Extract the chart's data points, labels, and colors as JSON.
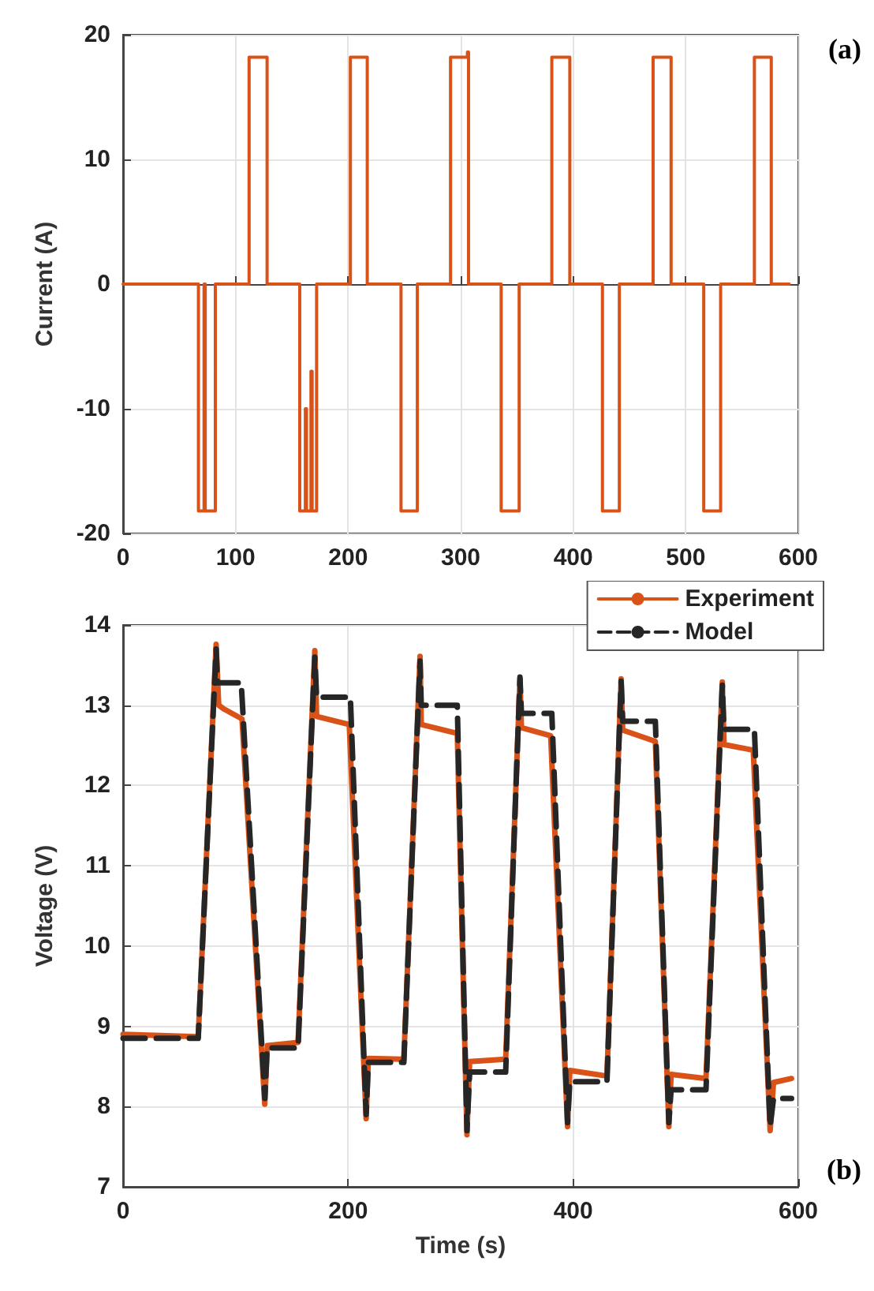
{
  "chart_data": [
    {
      "type": "step",
      "ylabel": "Current (A)",
      "annotations": [
        "(a)"
      ],
      "xlim": [
        0,
        600
      ],
      "xticks": [
        0,
        100,
        200,
        300,
        400,
        500,
        600
      ],
      "ylim": [
        -20,
        20
      ],
      "yticks": [
        -20,
        -10,
        0,
        10,
        20
      ],
      "grid": true,
      "marker": "none",
      "line_style": "solid",
      "color": "#d95319",
      "x": [
        0,
        67,
        67,
        72,
        72,
        73,
        73,
        82,
        82,
        112,
        112,
        128,
        128,
        157,
        157,
        162,
        162,
        163,
        163,
        167,
        167,
        168,
        168,
        172,
        172,
        202,
        202,
        217,
        217,
        247,
        247,
        261.5,
        261.5,
        291,
        291,
        306,
        306,
        307,
        307,
        336,
        336,
        352,
        352,
        381,
        381,
        397,
        397,
        426,
        426,
        441,
        441,
        471,
        471,
        487,
        487,
        516,
        516,
        531,
        531,
        561,
        561,
        576,
        576,
        592
      ],
      "values": [
        0,
        0,
        -18.2,
        -18.2,
        0,
        0,
        -18.2,
        -18.2,
        0,
        0,
        18.2,
        18.2,
        0,
        0,
        -18.2,
        -18.2,
        -10,
        -10,
        -18.2,
        -18.2,
        -7,
        -7,
        -18.2,
        -18.2,
        0,
        0,
        18.2,
        18.2,
        0,
        0,
        -18.2,
        -18.2,
        0,
        0,
        18.2,
        18.2,
        18.6,
        18.6,
        0,
        0,
        -18.2,
        -18.2,
        0,
        0,
        18.2,
        18.2,
        0,
        0,
        -18.2,
        -18.2,
        0,
        0,
        18.2,
        18.2,
        0,
        0,
        -18.2,
        -18.2,
        0,
        0,
        18.2,
        18.2,
        0,
        0
      ]
    },
    {
      "type": "line",
      "xlabel": "Time (s)",
      "ylabel": "Voltage (V)",
      "annotations": [
        "(b)"
      ],
      "xlim": [
        0,
        600
      ],
      "xticks": [
        0,
        200,
        400,
        600
      ],
      "ylim": [
        7,
        14
      ],
      "yticks": [
        7,
        8,
        9,
        10,
        11,
        12,
        13,
        14
      ],
      "grid": true,
      "legend": "top right",
      "marker": "none",
      "series": [
        {
          "name": "Experiment",
          "color": "#d95319",
          "line_style": "solid",
          "x": [
            0,
            66.8,
            82.7,
            85,
            90,
            105.7,
            125.9,
            128.2,
            155.5,
            170.4,
            172,
            201,
            216,
            218,
            249.5,
            263.9,
            265,
            297,
            305.6,
            308,
            340,
            352.7,
            354,
            380,
            395,
            397,
            430,
            442.6,
            444,
            473,
            485,
            487,
            518,
            532.5,
            534,
            560,
            575,
            578,
            594
          ],
          "values": [
            8.9,
            8.87,
            13.76,
            13.0,
            12.95,
            12.83,
            8.03,
            8.76,
            8.8,
            13.68,
            12.86,
            12.76,
            7.85,
            8.6,
            8.59,
            13.61,
            12.76,
            12.65,
            7.65,
            8.56,
            8.59,
            13.33,
            12.72,
            12.62,
            7.75,
            8.45,
            8.38,
            13.33,
            12.69,
            12.55,
            7.75,
            8.4,
            8.35,
            13.29,
            12.51,
            12.44,
            7.7,
            8.3,
            8.35
          ]
        },
        {
          "name": "Model",
          "color": "#262626",
          "line_style": "dashed",
          "x": [
            0,
            66.8,
            82.7,
            84,
            105,
            126,
            128,
            155.5,
            170.4,
            172,
            202,
            216,
            218,
            249.5,
            263.9,
            265,
            297,
            305.6,
            308,
            340,
            352.7,
            354,
            381,
            395,
            397,
            430,
            442.6,
            444,
            473,
            485,
            487,
            518,
            532.5,
            534,
            561,
            575,
            578,
            594
          ],
          "values": [
            8.85,
            8.85,
            13.7,
            13.28,
            13.28,
            8.1,
            8.73,
            8.73,
            13.6,
            13.1,
            13.1,
            7.9,
            8.55,
            8.55,
            13.55,
            13.0,
            13.0,
            7.7,
            8.43,
            8.43,
            13.35,
            12.9,
            12.9,
            7.8,
            8.31,
            8.31,
            13.3,
            12.8,
            12.8,
            7.8,
            8.21,
            8.21,
            13.25,
            12.7,
            12.7,
            7.75,
            8.1,
            8.1
          ]
        }
      ]
    }
  ]
}
